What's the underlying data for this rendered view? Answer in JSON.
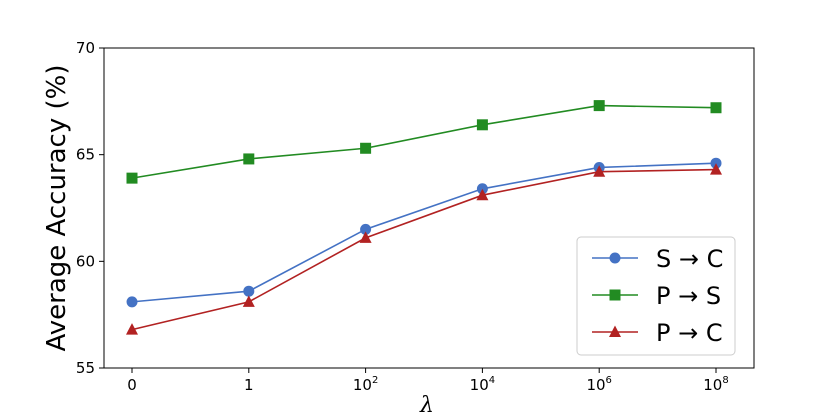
{
  "chart_data": {
    "type": "line",
    "xlabel": "λ",
    "ylabel": "Average Accuracy (%)",
    "categories": [
      {
        "base": "0",
        "exp": ""
      },
      {
        "base": "1",
        "exp": ""
      },
      {
        "base": "10",
        "exp": "2"
      },
      {
        "base": "10",
        "exp": "4"
      },
      {
        "base": "10",
        "exp": "6"
      },
      {
        "base": "10",
        "exp": "8"
      }
    ],
    "ylim": [
      55,
      70
    ],
    "yticks": [
      55,
      60,
      65,
      70
    ],
    "grid": false,
    "legend_position": "lower-right",
    "series": [
      {
        "name": "S → C",
        "color": "#4472c4",
        "marker": "circle",
        "values": [
          58.1,
          58.6,
          61.5,
          63.4,
          64.4,
          64.6
        ]
      },
      {
        "name": "P → S",
        "color": "#228b22",
        "marker": "square",
        "values": [
          63.9,
          64.8,
          65.3,
          66.4,
          67.3,
          67.2
        ]
      },
      {
        "name": "P → C",
        "color": "#b22222",
        "marker": "triangle",
        "values": [
          56.8,
          58.1,
          61.1,
          63.1,
          64.2,
          64.3
        ]
      }
    ]
  }
}
